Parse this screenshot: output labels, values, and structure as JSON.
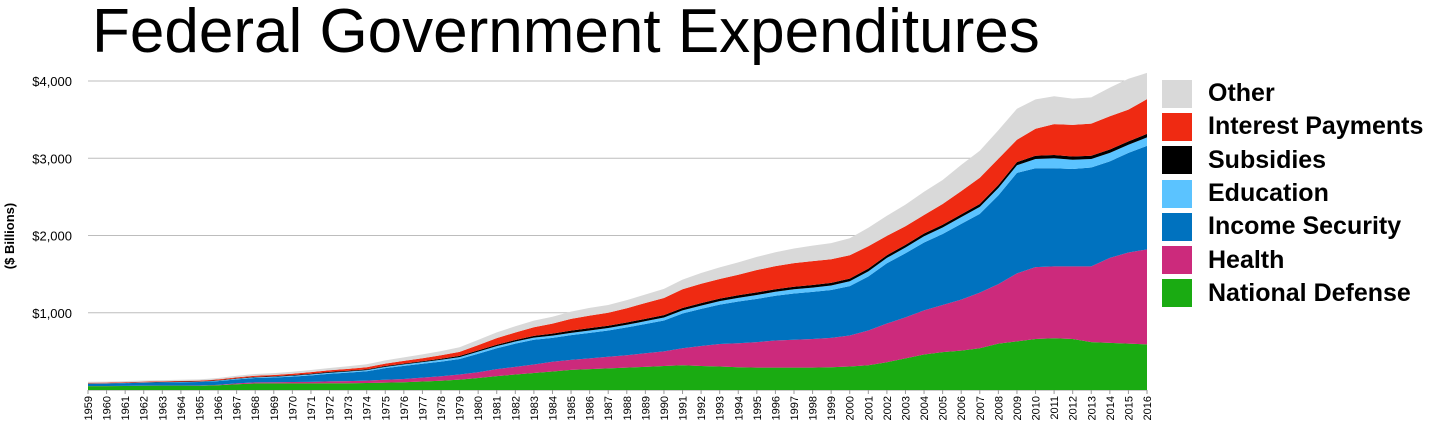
{
  "chart_data": {
    "type": "area",
    "stacked": true,
    "title": "Federal Government Expenditures",
    "ylabel": "($ Billions)",
    "xlabel": "",
    "ylim": [
      0,
      4000
    ],
    "yticks": [
      1000,
      2000,
      3000,
      4000
    ],
    "ytick_labels": [
      "$1,000",
      "$2,000",
      "$3,000",
      "$4,000"
    ],
    "grid": true,
    "legend_position": "right",
    "x": [
      1959,
      1960,
      1961,
      1962,
      1963,
      1964,
      1965,
      1966,
      1967,
      1968,
      1969,
      1970,
      1971,
      1972,
      1973,
      1974,
      1975,
      1976,
      1977,
      1978,
      1979,
      1980,
      1981,
      1982,
      1983,
      1984,
      1985,
      1986,
      1987,
      1988,
      1989,
      1990,
      1991,
      1992,
      1993,
      1994,
      1995,
      1996,
      1997,
      1998,
      1999,
      2000,
      2001,
      2002,
      2003,
      2004,
      2005,
      2006,
      2007,
      2008,
      2009,
      2010,
      2011,
      2012,
      2013,
      2014,
      2015,
      2016
    ],
    "series": [
      {
        "name": "National Defense",
        "color": "#1aab12",
        "values": [
          50,
          50,
          52,
          55,
          56,
          57,
          55,
          62,
          75,
          85,
          85,
          85,
          85,
          87,
          87,
          90,
          95,
          100,
          110,
          120,
          135,
          155,
          180,
          200,
          220,
          240,
          260,
          270,
          280,
          290,
          300,
          310,
          320,
          310,
          305,
          295,
          290,
          290,
          290,
          290,
          295,
          305,
          320,
          360,
          410,
          460,
          490,
          510,
          540,
          600,
          630,
          660,
          670,
          660,
          620,
          610,
          600,
          590
        ]
      },
      {
        "name": "Health",
        "color": "#cc2a7c",
        "values": [
          1,
          1,
          1,
          1,
          2,
          2,
          3,
          5,
          10,
          14,
          16,
          18,
          20,
          24,
          28,
          32,
          38,
          42,
          50,
          58,
          66,
          75,
          90,
          100,
          110,
          125,
          130,
          140,
          150,
          160,
          175,
          190,
          220,
          260,
          290,
          310,
          330,
          350,
          360,
          370,
          380,
          400,
          450,
          500,
          530,
          570,
          610,
          660,
          720,
          770,
          880,
          930,
          930,
          940,
          980,
          1100,
          1180,
          1230
        ]
      },
      {
        "name": "Income Security",
        "color": "#0072bf",
        "values": [
          30,
          32,
          36,
          38,
          40,
          42,
          45,
          48,
          52,
          56,
          60,
          70,
          85,
          100,
          110,
          120,
          150,
          170,
          180,
          190,
          200,
          240,
          270,
          300,
          320,
          310,
          320,
          330,
          340,
          360,
          380,
          400,
          450,
          480,
          510,
          540,
          560,
          580,
          600,
          610,
          620,
          640,
          700,
          780,
          830,
          880,
          920,
          980,
          1020,
          1150,
          1300,
          1280,
          1270,
          1260,
          1280,
          1250,
          1290,
          1340
        ]
      },
      {
        "name": "Education",
        "color": "#5bc3ff",
        "values": [
          2,
          2,
          2,
          3,
          3,
          3,
          4,
          6,
          8,
          9,
          10,
          11,
          12,
          13,
          14,
          15,
          17,
          19,
          21,
          23,
          25,
          27,
          28,
          27,
          28,
          29,
          30,
          31,
          32,
          34,
          36,
          38,
          40,
          43,
          45,
          48,
          50,
          52,
          54,
          56,
          58,
          62,
          66,
          70,
          74,
          80,
          84,
          88,
          90,
          95,
          100,
          120,
          130,
          120,
          110,
          110,
          105,
          110
        ]
      },
      {
        "name": "Subsidies",
        "color": "#000000",
        "values": [
          3,
          3,
          3,
          3,
          4,
          4,
          4,
          5,
          6,
          6,
          7,
          8,
          9,
          10,
          10,
          10,
          10,
          11,
          12,
          14,
          15,
          16,
          18,
          20,
          23,
          25,
          28,
          30,
          30,
          30,
          30,
          31,
          32,
          32,
          33,
          33,
          33,
          33,
          33,
          33,
          34,
          34,
          35,
          35,
          35,
          36,
          36,
          36,
          37,
          38,
          40,
          42,
          42,
          42,
          43,
          44,
          44,
          45
        ]
      },
      {
        "name": "Interest Payments",
        "color": "#ef2a12",
        "values": [
          8,
          8,
          8,
          9,
          9,
          10,
          11,
          12,
          13,
          15,
          16,
          19,
          20,
          21,
          24,
          28,
          31,
          35,
          38,
          44,
          52,
          68,
          85,
          98,
          112,
          130,
          152,
          162,
          168,
          185,
          205,
          222,
          242,
          250,
          254,
          266,
          290,
          298,
          305,
          310,
          305,
          303,
          290,
          250,
          240,
          240,
          268,
          300,
          340,
          340,
          290,
          350,
          400,
          410,
          415,
          430,
          410,
          450
        ]
      },
      {
        "name": "Other",
        "color": "#d9d9d9",
        "values": [
          12,
          12,
          13,
          14,
          14,
          15,
          16,
          18,
          20,
          22,
          24,
          26,
          28,
          30,
          35,
          38,
          42,
          45,
          50,
          55,
          60,
          68,
          75,
          80,
          85,
          90,
          95,
          100,
          100,
          105,
          110,
          118,
          125,
          140,
          150,
          160,
          170,
          180,
          190,
          200,
          210,
          220,
          240,
          260,
          280,
          300,
          310,
          340,
          350,
          370,
          400,
          380,
          360,
          340,
          340,
          370,
          400,
          340
        ]
      }
    ]
  }
}
